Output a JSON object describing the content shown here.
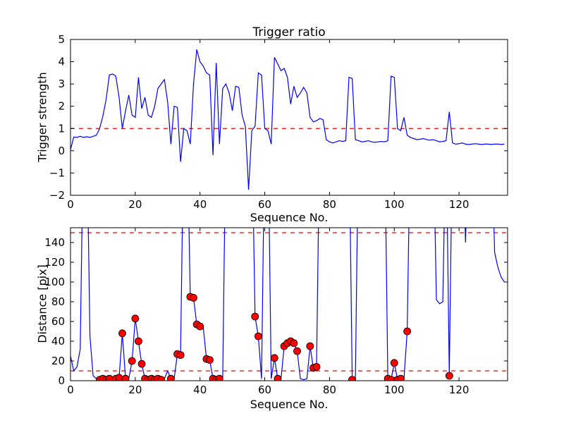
{
  "figure": {
    "background": "#ffffff",
    "line_color": "#0000ff",
    "dash_color": "#ff0000",
    "marker_color": "#ff0000",
    "marker_edge_color": "#000000",
    "axis_color": "#000000"
  },
  "chart_data": [
    {
      "type": "line",
      "title": "Trigger ratio",
      "xlabel": "Sequence No.",
      "ylabel": "Trigger strength",
      "xlim": [
        0,
        135
      ],
      "ylim": [
        -2,
        5
      ],
      "xticks": [
        0,
        20,
        40,
        60,
        80,
        100,
        120
      ],
      "yticks": [
        -2,
        -1,
        0,
        1,
        2,
        3,
        4,
        5
      ],
      "hlines": [
        1
      ],
      "grid": false,
      "legend": "none",
      "values": [
        0.05,
        0.62,
        0.6,
        0.65,
        0.6,
        0.63,
        0.6,
        0.65,
        0.7,
        1.0,
        1.55,
        2.3,
        3.4,
        3.45,
        3.35,
        2.4,
        1.0,
        1.8,
        2.5,
        1.6,
        1.5,
        3.3,
        1.9,
        2.4,
        1.6,
        1.5,
        2.0,
        2.8,
        3.0,
        3.2,
        2.2,
        0.3,
        2.0,
        1.95,
        -0.5,
        1.0,
        0.9,
        0.3,
        3.0,
        4.55,
        4.0,
        3.8,
        3.5,
        3.4,
        -0.2,
        3.95,
        0.3,
        2.8,
        3.0,
        2.6,
        1.8,
        2.9,
        2.85,
        1.6,
        1.1,
        -1.75,
        0.9,
        1.1,
        3.5,
        3.4,
        1.0,
        0.9,
        0.3,
        4.2,
        3.9,
        3.6,
        3.7,
        3.3,
        2.1,
        2.9,
        2.4,
        2.6,
        2.85,
        2.6,
        1.5,
        1.3,
        1.35,
        1.45,
        1.4,
        0.5,
        0.4,
        0.35,
        0.4,
        0.45,
        0.42,
        0.45,
        3.3,
        3.25,
        0.5,
        0.45,
        0.4,
        0.42,
        0.45,
        0.4,
        0.38,
        0.4,
        0.42,
        0.4,
        0.45,
        3.35,
        3.3,
        1.0,
        0.9,
        1.5,
        0.7,
        0.6,
        0.55,
        0.5,
        0.52,
        0.55,
        0.5,
        0.48,
        0.5,
        0.45,
        0.4,
        0.42,
        0.45,
        1.75,
        0.35,
        0.3,
        0.32,
        0.35,
        0.3,
        0.28,
        0.3,
        0.32,
        0.3,
        0.28,
        0.3,
        0.3,
        0.28,
        0.3,
        0.3,
        0.28,
        0.3
      ],
      "marker_indices": []
    },
    {
      "type": "line",
      "title": "",
      "xlabel": "Sequence No.",
      "ylabel": "Distance [pix]",
      "xlim": [
        0,
        135
      ],
      "ylim": [
        0,
        155
      ],
      "xticks": [
        0,
        20,
        40,
        60,
        80,
        100,
        120
      ],
      "yticks": [
        0,
        20,
        40,
        60,
        80,
        100,
        120,
        140
      ],
      "hlines": [
        10,
        150
      ],
      "grid": false,
      "legend": "none",
      "values": [
        25,
        10,
        14,
        32,
        260,
        260,
        45,
        5,
        2,
        1,
        2,
        1,
        2,
        1,
        2,
        3,
        48,
        2,
        2,
        20,
        63,
        40,
        17,
        2,
        1,
        2,
        1,
        2,
        1,
        2,
        10,
        2,
        2,
        27,
        26,
        260,
        260,
        85,
        84,
        57,
        55,
        54,
        22,
        21,
        2,
        1,
        2,
        2,
        260,
        260,
        260,
        260,
        260,
        260,
        260,
        260,
        260,
        65,
        45,
        2,
        260,
        260,
        2,
        23,
        2,
        1,
        35,
        38,
        40,
        38,
        30,
        2,
        1,
        2,
        35,
        13,
        14,
        260,
        260,
        260,
        260,
        260,
        260,
        260,
        260,
        260,
        260,
        1,
        2,
        260,
        260,
        260,
        260,
        260,
        260,
        260,
        260,
        260,
        2,
        1,
        18,
        1,
        2,
        2,
        50,
        260,
        260,
        260,
        260,
        260,
        260,
        260,
        260,
        82,
        78,
        80,
        260,
        5,
        260,
        260,
        260,
        260,
        140,
        260,
        260,
        260,
        260,
        260,
        260,
        260,
        260,
        130,
        115,
        105,
        100
      ],
      "marker_indices": [
        9,
        10,
        11,
        12,
        14,
        15,
        16,
        17,
        19,
        20,
        21,
        22,
        23,
        24,
        25,
        26,
        27,
        28,
        31,
        33,
        34,
        37,
        38,
        39,
        40,
        42,
        43,
        44,
        45,
        46,
        57,
        58,
        63,
        64,
        66,
        67,
        68,
        69,
        70,
        74,
        75,
        76,
        87,
        98,
        99,
        100,
        101,
        102,
        104,
        117
      ]
    }
  ]
}
